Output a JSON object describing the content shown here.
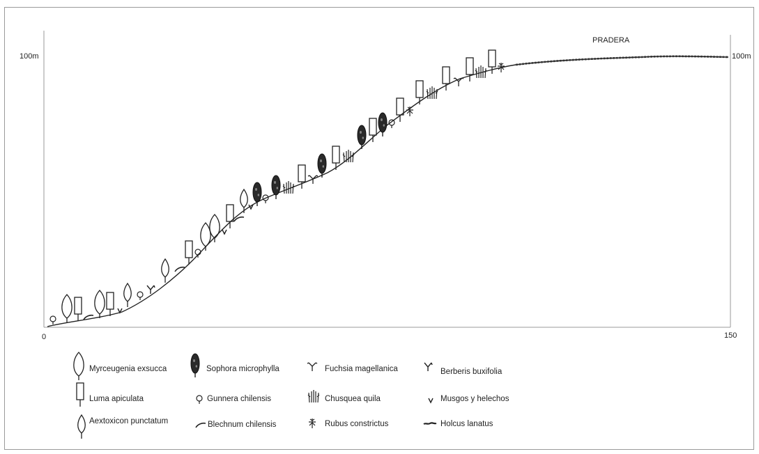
{
  "diagram": {
    "y_axis_top_label_left": "100m",
    "y_axis_top_label_right": "100m",
    "x_axis_start_label": "0",
    "x_axis_end_label": "150",
    "zone_label": "PRADERA"
  },
  "legend": [
    {
      "label": "Myrceugenia exsucca",
      "icon": "myrceugenia-icon"
    },
    {
      "label": "Sophora microphylla",
      "icon": "sophora-icon"
    },
    {
      "label": "Fuchsia magellanica",
      "icon": "fuchsia-icon"
    },
    {
      "label": "Berberis buxifolia",
      "icon": "berberis-icon"
    },
    {
      "label": "Luma apiculata",
      "icon": "luma-icon"
    },
    {
      "label": "Gunnera chilensis",
      "icon": "gunnera-icon"
    },
    {
      "label": "Chusquea quila",
      "icon": "chusquea-icon"
    },
    {
      "label": "Musgos y helechos",
      "icon": "musgos-icon"
    },
    {
      "label": "Aextoxicon punctatum",
      "icon": "aextoxicon-icon"
    },
    {
      "label": "Blechnum chilensis",
      "icon": "blechnum-icon"
    },
    {
      "label": "Rubus constrictus",
      "icon": "rubus-icon"
    },
    {
      "label": "Holcus lanatus",
      "icon": "holcus-icon"
    }
  ]
}
